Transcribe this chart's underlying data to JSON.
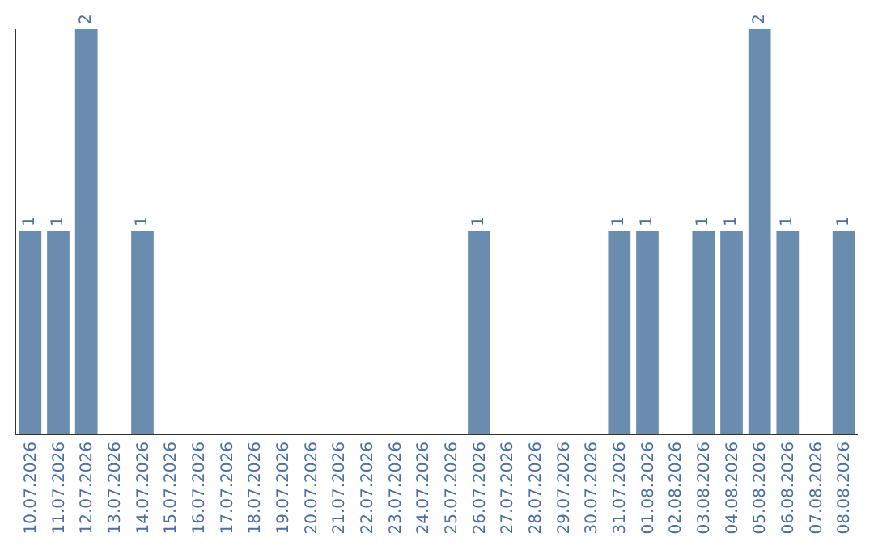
{
  "chart_data": {
    "type": "bar",
    "categories": [
      "10.07.2026",
      "11.07.2026",
      "12.07.2026",
      "13.07.2026",
      "14.07.2026",
      "15.07.2026",
      "16.07.2026",
      "17.07.2026",
      "18.07.2026",
      "19.07.2026",
      "20.07.2026",
      "21.07.2026",
      "22.07.2026",
      "23.07.2026",
      "24.07.2026",
      "25.07.2026",
      "26.07.2026",
      "27.07.2026",
      "28.07.2026",
      "29.07.2026",
      "30.07.2026",
      "31.07.2026",
      "01.08.2026",
      "02.08.2026",
      "03.08.2026",
      "04.08.2026",
      "05.08.2026",
      "06.08.2026",
      "07.08.2026",
      "08.08.2026"
    ],
    "values": [
      1,
      1,
      2,
      0,
      1,
      0,
      0,
      0,
      0,
      0,
      0,
      0,
      0,
      0,
      0,
      0,
      1,
      0,
      0,
      0,
      0,
      1,
      1,
      0,
      1,
      1,
      2,
      1,
      0,
      1
    ],
    "value_labels": [
      "1",
      "1",
      "2",
      null,
      "1",
      null,
      null,
      null,
      null,
      null,
      null,
      null,
      null,
      null,
      null,
      null,
      "1",
      null,
      null,
      null,
      null,
      "1",
      "1",
      null,
      "1",
      "1",
      "2",
      "1",
      null,
      "1"
    ],
    "color": "#6a8caf",
    "ylim": [
      0,
      2
    ],
    "tick_labels": "x",
    "legend": false
  }
}
